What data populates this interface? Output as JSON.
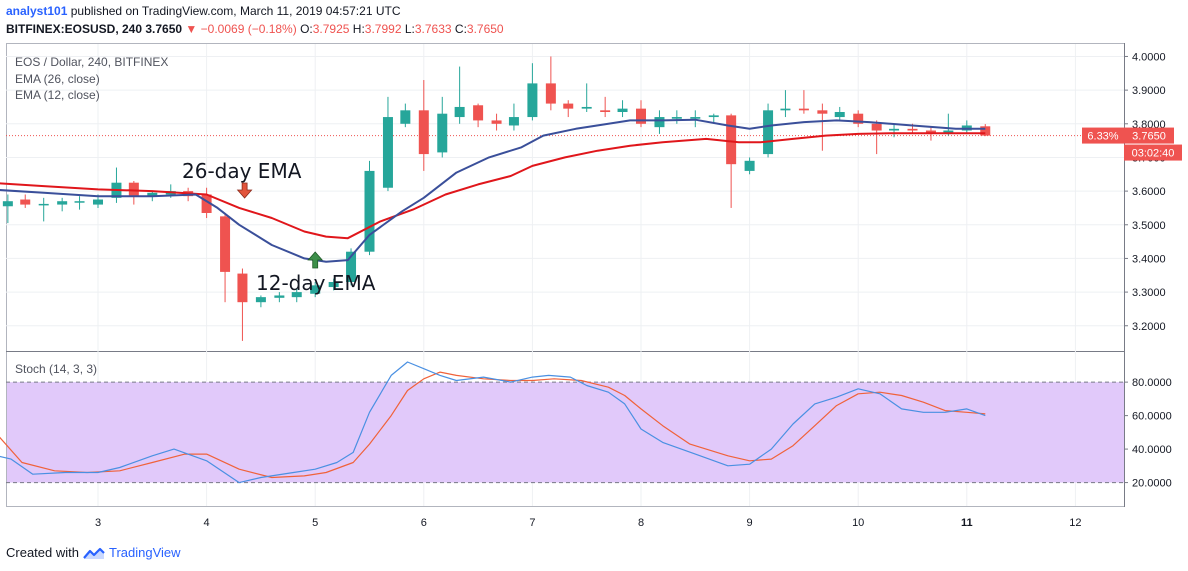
{
  "header": {
    "author": "analyst101",
    "published": "published on TradingView.com, March 11, 2019 04:57:21 UTC",
    "symbol": "BITFINEX:EOSUSD, 240",
    "last": "3.7650",
    "change": "−0.0069 (−0.18%)",
    "o_label": "O:",
    "o": "3.7925",
    "h_label": "H:",
    "h": "3.7992",
    "l_label": "L:",
    "l": "3.7633",
    "c_label": "C:",
    "c": "3.7650"
  },
  "legend": {
    "title": "EOS / Dollar, 240, BITFINEX",
    "ema26": "EMA (26, close)",
    "ema12": "EMA (12, close)",
    "stoch": "Stoch (14, 3, 3)"
  },
  "annotations": {
    "ema26_label": "26-day EMA",
    "ema12_label": "12-day EMA"
  },
  "price_tag": {
    "percent": "6.33%",
    "price": "3.7650",
    "timer": "03:02:40"
  },
  "footer": {
    "created_with": "Created with",
    "brand": "TradingView"
  },
  "colors": {
    "up": "#26a69a",
    "down": "#ef5350",
    "ema26": "#e0161b",
    "ema12": "#3a4f9a",
    "stoch_k": "#4a90e2",
    "stoch_d": "#f0623a",
    "stoch_band": "#e1c9fa"
  },
  "chart_data": {
    "type": "candlestick",
    "x_axis": {
      "ticks": [
        "3",
        "4",
        "5",
        "6",
        "7",
        "8",
        "9",
        "10",
        "11",
        "12"
      ],
      "label": ""
    },
    "price_axis": {
      "ticks": [
        "4.0000",
        "3.9000",
        "3.8000",
        "3.7000",
        "3.6000",
        "3.5000",
        "3.4000",
        "3.3000",
        "3.2000"
      ],
      "range": [
        3.125,
        4.04
      ]
    },
    "stoch_axis": {
      "ticks": [
        "80.0000",
        "60.0000",
        "40.0000",
        "20.0000"
      ],
      "range": [
        6,
        98
      ],
      "band": [
        20,
        80
      ]
    },
    "candles": [
      {
        "t": 2.0,
        "o": 3.585,
        "h": 3.6,
        "l": 3.54,
        "c": 3.565
      },
      {
        "t": 2.17,
        "o": 3.555,
        "h": 3.59,
        "l": 3.505,
        "c": 3.57
      },
      {
        "t": 2.33,
        "o": 3.575,
        "h": 3.59,
        "l": 3.55,
        "c": 3.56
      },
      {
        "t": 2.5,
        "o": 3.56,
        "h": 3.58,
        "l": 3.51,
        "c": 3.562
      },
      {
        "t": 2.67,
        "o": 3.56,
        "h": 3.58,
        "l": 3.54,
        "c": 3.57
      },
      {
        "t": 2.83,
        "o": 3.568,
        "h": 3.585,
        "l": 3.545,
        "c": 3.57
      },
      {
        "t": 3.0,
        "o": 3.56,
        "h": 3.59,
        "l": 3.55,
        "c": 3.575
      },
      {
        "t": 3.17,
        "o": 3.58,
        "h": 3.67,
        "l": 3.565,
        "c": 3.625
      },
      {
        "t": 3.33,
        "o": 3.625,
        "h": 3.63,
        "l": 3.56,
        "c": 3.585
      },
      {
        "t": 3.5,
        "o": 3.585,
        "h": 3.6,
        "l": 3.57,
        "c": 3.595
      },
      {
        "t": 3.67,
        "o": 3.59,
        "h": 3.62,
        "l": 3.58,
        "c": 3.6
      },
      {
        "t": 3.83,
        "o": 3.6,
        "h": 3.61,
        "l": 3.57,
        "c": 3.585
      },
      {
        "t": 4.0,
        "o": 3.59,
        "h": 3.61,
        "l": 3.52,
        "c": 3.535
      },
      {
        "t": 4.17,
        "o": 3.525,
        "h": 3.535,
        "l": 3.27,
        "c": 3.36
      },
      {
        "t": 4.33,
        "o": 3.355,
        "h": 3.37,
        "l": 3.155,
        "c": 3.27
      },
      {
        "t": 4.5,
        "o": 3.27,
        "h": 3.29,
        "l": 3.255,
        "c": 3.285
      },
      {
        "t": 4.67,
        "o": 3.283,
        "h": 3.3,
        "l": 3.27,
        "c": 3.29
      },
      {
        "t": 4.83,
        "o": 3.285,
        "h": 3.31,
        "l": 3.27,
        "c": 3.3
      },
      {
        "t": 5.0,
        "o": 3.295,
        "h": 3.33,
        "l": 3.285,
        "c": 3.32
      },
      {
        "t": 5.17,
        "o": 3.315,
        "h": 3.34,
        "l": 3.305,
        "c": 3.33
      },
      {
        "t": 5.33,
        "o": 3.33,
        "h": 3.43,
        "l": 3.32,
        "c": 3.42
      },
      {
        "t": 5.5,
        "o": 3.42,
        "h": 3.69,
        "l": 3.41,
        "c": 3.66
      },
      {
        "t": 5.67,
        "o": 3.61,
        "h": 3.88,
        "l": 3.6,
        "c": 3.82
      },
      {
        "t": 5.83,
        "o": 3.8,
        "h": 3.86,
        "l": 3.79,
        "c": 3.84
      },
      {
        "t": 6.0,
        "o": 3.84,
        "h": 3.93,
        "l": 3.66,
        "c": 3.71
      },
      {
        "t": 6.17,
        "o": 3.715,
        "h": 3.88,
        "l": 3.7,
        "c": 3.83
      },
      {
        "t": 6.33,
        "o": 3.82,
        "h": 3.97,
        "l": 3.8,
        "c": 3.85
      },
      {
        "t": 6.5,
        "o": 3.855,
        "h": 3.86,
        "l": 3.79,
        "c": 3.81
      },
      {
        "t": 6.67,
        "o": 3.81,
        "h": 3.83,
        "l": 3.78,
        "c": 3.8
      },
      {
        "t": 6.83,
        "o": 3.795,
        "h": 3.86,
        "l": 3.78,
        "c": 3.82
      },
      {
        "t": 7.0,
        "o": 3.82,
        "h": 3.98,
        "l": 3.81,
        "c": 3.92
      },
      {
        "t": 7.17,
        "o": 3.92,
        "h": 4.0,
        "l": 3.84,
        "c": 3.86
      },
      {
        "t": 7.33,
        "o": 3.86,
        "h": 3.87,
        "l": 3.82,
        "c": 3.845
      },
      {
        "t": 7.5,
        "o": 3.845,
        "h": 3.92,
        "l": 3.835,
        "c": 3.85
      },
      {
        "t": 7.67,
        "o": 3.84,
        "h": 3.88,
        "l": 3.82,
        "c": 3.835
      },
      {
        "t": 7.83,
        "o": 3.835,
        "h": 3.87,
        "l": 3.82,
        "c": 3.845
      },
      {
        "t": 8.0,
        "o": 3.845,
        "h": 3.87,
        "l": 3.79,
        "c": 3.8
      },
      {
        "t": 8.17,
        "o": 3.79,
        "h": 3.84,
        "l": 3.77,
        "c": 3.82
      },
      {
        "t": 8.33,
        "o": 3.815,
        "h": 3.84,
        "l": 3.8,
        "c": 3.82
      },
      {
        "t": 8.5,
        "o": 3.815,
        "h": 3.84,
        "l": 3.79,
        "c": 3.82
      },
      {
        "t": 8.67,
        "o": 3.82,
        "h": 3.83,
        "l": 3.8,
        "c": 3.825
      },
      {
        "t": 8.83,
        "o": 3.825,
        "h": 3.83,
        "l": 3.55,
        "c": 3.68
      },
      {
        "t": 9.0,
        "o": 3.66,
        "h": 3.7,
        "l": 3.65,
        "c": 3.69
      },
      {
        "t": 9.17,
        "o": 3.71,
        "h": 3.86,
        "l": 3.7,
        "c": 3.84
      },
      {
        "t": 9.33,
        "o": 3.84,
        "h": 3.9,
        "l": 3.82,
        "c": 3.845
      },
      {
        "t": 9.5,
        "o": 3.845,
        "h": 3.9,
        "l": 3.83,
        "c": 3.84
      },
      {
        "t": 9.67,
        "o": 3.84,
        "h": 3.86,
        "l": 3.72,
        "c": 3.83
      },
      {
        "t": 9.83,
        "o": 3.82,
        "h": 3.85,
        "l": 3.81,
        "c": 3.835
      },
      {
        "t": 10.0,
        "o": 3.83,
        "h": 3.84,
        "l": 3.79,
        "c": 3.8
      },
      {
        "t": 10.17,
        "o": 3.8,
        "h": 3.81,
        "l": 3.71,
        "c": 3.78
      },
      {
        "t": 10.33,
        "o": 3.78,
        "h": 3.8,
        "l": 3.76,
        "c": 3.785
      },
      {
        "t": 10.5,
        "o": 3.785,
        "h": 3.8,
        "l": 3.77,
        "c": 3.78
      },
      {
        "t": 10.67,
        "o": 3.78,
        "h": 3.79,
        "l": 3.75,
        "c": 3.77
      },
      {
        "t": 10.83,
        "o": 3.772,
        "h": 3.83,
        "l": 3.765,
        "c": 3.78
      },
      {
        "t": 11.0,
        "o": 3.78,
        "h": 3.81,
        "l": 3.77,
        "c": 3.795
      },
      {
        "t": 11.17,
        "o": 3.7925,
        "h": 3.7992,
        "l": 3.7633,
        "c": 3.765
      }
    ],
    "ema26": {
      "name": "EMA (26, close)",
      "x": [
        2.0,
        2.5,
        3.0,
        3.5,
        4.0,
        4.3,
        4.6,
        4.9,
        5.1,
        5.3,
        5.6,
        5.9,
        6.2,
        6.5,
        6.8,
        7.0,
        7.3,
        7.6,
        7.9,
        8.2,
        8.6,
        8.9,
        9.1,
        9.4,
        9.7,
        10.0,
        10.3,
        10.6,
        10.9,
        11.17
      ],
      "values": [
        3.625,
        3.615,
        3.605,
        3.6,
        3.59,
        3.55,
        3.52,
        3.48,
        3.465,
        3.46,
        3.51,
        3.545,
        3.59,
        3.62,
        3.645,
        3.675,
        3.7,
        3.72,
        3.735,
        3.745,
        3.755,
        3.745,
        3.745,
        3.755,
        3.765,
        3.77,
        3.772,
        3.772,
        3.772,
        3.772
      ]
    },
    "ema12": {
      "name": "EMA (12, close)",
      "x": [
        2.0,
        2.5,
        3.0,
        3.5,
        3.9,
        4.1,
        4.3,
        4.6,
        4.9,
        5.1,
        5.3,
        5.5,
        5.8,
        6.0,
        6.3,
        6.6,
        6.9,
        7.1,
        7.4,
        7.7,
        7.9,
        8.2,
        8.5,
        8.8,
        9.0,
        9.2,
        9.5,
        9.8,
        10.1,
        10.5,
        10.9,
        11.17
      ],
      "values": [
        3.605,
        3.595,
        3.585,
        3.585,
        3.59,
        3.55,
        3.5,
        3.44,
        3.4,
        3.39,
        3.395,
        3.47,
        3.54,
        3.58,
        3.655,
        3.7,
        3.73,
        3.765,
        3.785,
        3.8,
        3.81,
        3.81,
        3.812,
        3.795,
        3.785,
        3.795,
        3.805,
        3.81,
        3.805,
        3.795,
        3.785,
        3.785
      ]
    },
    "stoch_k": {
      "name": "%K",
      "x": [
        2.0,
        2.2,
        2.4,
        2.7,
        3.0,
        3.2,
        3.5,
        3.7,
        4.0,
        4.3,
        4.5,
        4.8,
        5.0,
        5.2,
        5.35,
        5.5,
        5.7,
        5.85,
        6.0,
        6.15,
        6.3,
        6.55,
        6.8,
        7.0,
        7.15,
        7.35,
        7.5,
        7.7,
        7.85,
        8.0,
        8.2,
        8.5,
        8.8,
        9.0,
        9.2,
        9.4,
        9.6,
        9.8,
        10.0,
        10.2,
        10.4,
        10.6,
        10.8,
        11.0,
        11.17
      ],
      "values": [
        37,
        34,
        25,
        26,
        26,
        29,
        36,
        40,
        33,
        20,
        23,
        26,
        28,
        32,
        38,
        62,
        84,
        92,
        88,
        84,
        81,
        83,
        80,
        83,
        84,
        83,
        78,
        74,
        67,
        52,
        44,
        37,
        30,
        31,
        40,
        55,
        67,
        71,
        76,
        73,
        64,
        62,
        62,
        64,
        60
      ]
    },
    "stoch_d": {
      "name": "%D",
      "x": [
        2.0,
        2.3,
        2.6,
        2.9,
        3.2,
        3.5,
        3.8,
        4.0,
        4.3,
        4.6,
        4.9,
        5.1,
        5.35,
        5.5,
        5.7,
        5.85,
        6.0,
        6.15,
        6.3,
        6.55,
        6.8,
        7.0,
        7.2,
        7.45,
        7.7,
        7.85,
        8.0,
        8.2,
        8.45,
        8.8,
        9.0,
        9.2,
        9.4,
        9.6,
        9.8,
        10.0,
        10.2,
        10.4,
        10.6,
        10.8,
        11.0,
        11.17
      ],
      "values": [
        54,
        32,
        27,
        26,
        27,
        32,
        37,
        37,
        28,
        23,
        24,
        26,
        32,
        43,
        60,
        75,
        82,
        86,
        84,
        82,
        81,
        81,
        82,
        81,
        77,
        72,
        64,
        54,
        43,
        36,
        33,
        34,
        42,
        54,
        66,
        73,
        74,
        72,
        68,
        63,
        62,
        61
      ]
    }
  }
}
